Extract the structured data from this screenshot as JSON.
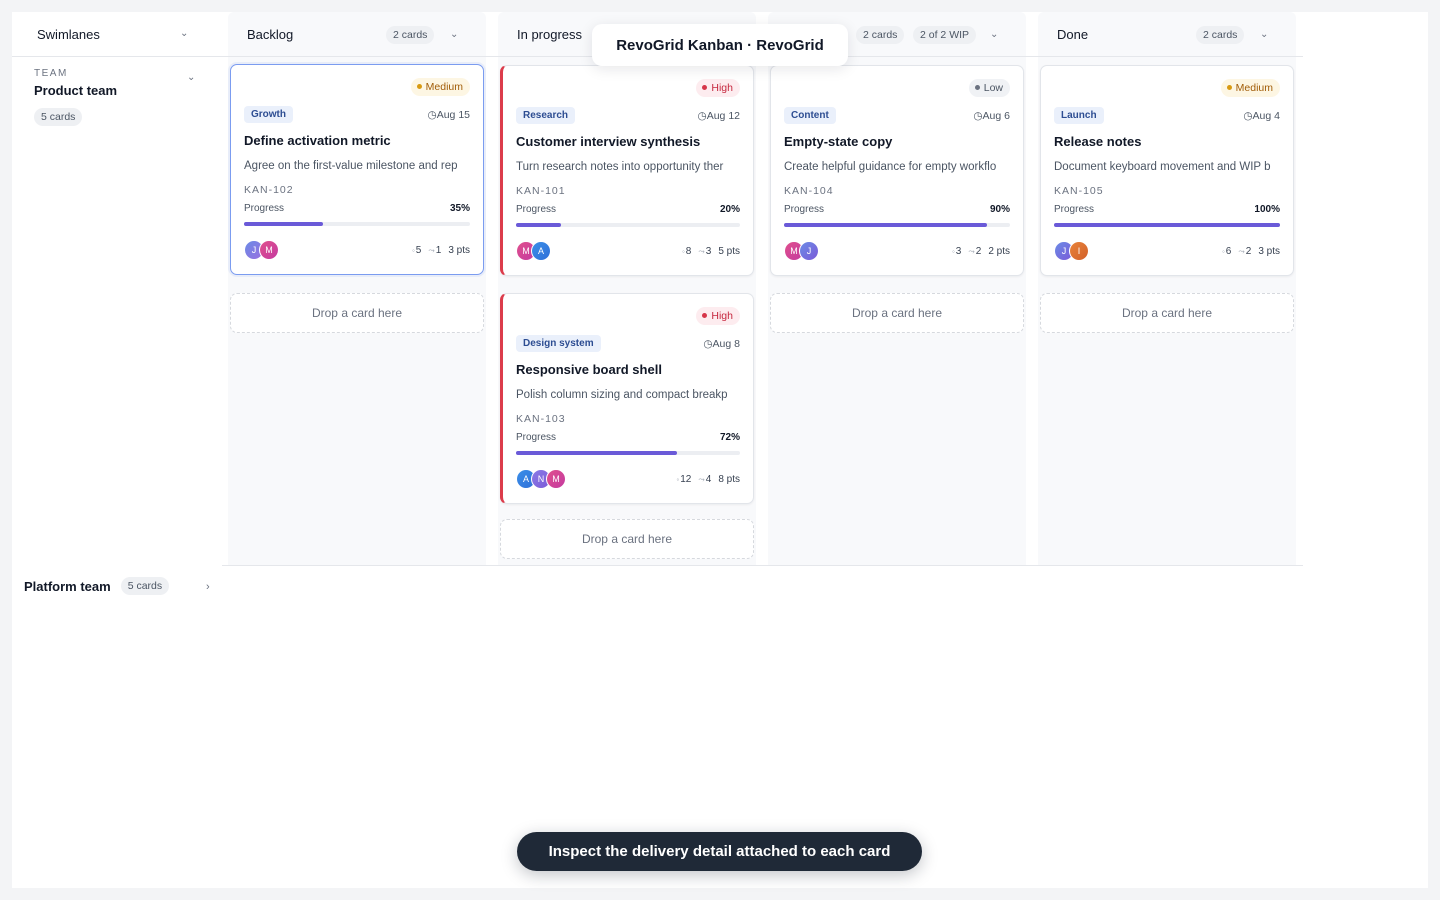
{
  "window_title": "RevoGrid Kanban · RevoGrid",
  "toast": "Inspect the delivery detail attached to each card",
  "swimlanes_header": "Swimlanes",
  "swimlanes": [
    {
      "caption": "TEAM",
      "name": "Product team",
      "count": "5 cards",
      "expanded": true
    },
    {
      "name": "Platform team",
      "count": "5 cards",
      "expanded": false
    }
  ],
  "drop_text": "Drop a card here",
  "colors": {
    "accent": "#6a5ad8",
    "high": "#dc3c4b",
    "medium": "#d89a12",
    "selected_border": "#7b9cf0"
  },
  "icons": {
    "calendar": "calendar-icon",
    "comment": "comment-icon",
    "link": "link-icon",
    "chevron": "chevron-down-icon"
  },
  "columns": [
    {
      "title": "Backlog",
      "count": "2 cards",
      "wip": ""
    },
    {
      "title": "In progress",
      "count": "",
      "wip": ""
    },
    {
      "title": "",
      "count": "2 cards",
      "wip": "2 of 2 WIP"
    },
    {
      "title": "Done",
      "count": "2 cards",
      "wip": ""
    }
  ],
  "cards": [
    {
      "priority": "Medium",
      "tag": "Growth",
      "date": "Aug 15",
      "title": "Define activation metric",
      "description": "Agree on the first-value milestone and rep",
      "key": "KAN-102",
      "progress_label": "Progress",
      "progress": "35%",
      "progress_value": 0.35,
      "avatars": [
        "J",
        "M"
      ],
      "comments": "5",
      "links": "1",
      "points": "3 pts"
    },
    {
      "priority": "High",
      "tag": "Research",
      "date": "Aug 12",
      "title": "Customer interview synthesis",
      "description": "Turn research notes into opportunity ther",
      "key": "KAN-101",
      "progress_label": "Progress",
      "progress": "20%",
      "progress_value": 0.2,
      "avatars": [
        "M",
        "A"
      ],
      "comments": "8",
      "links": "3",
      "points": "5 pts"
    },
    {
      "priority": "High",
      "tag": "Design system",
      "date": "Aug 8",
      "title": "Responsive board shell",
      "description": "Polish column sizing and compact breakp",
      "key": "KAN-103",
      "progress_label": "Progress",
      "progress": "72%",
      "progress_value": 0.72,
      "avatars": [
        "A",
        "N",
        "M"
      ],
      "comments": "12",
      "links": "4",
      "points": "8 pts"
    },
    {
      "priority": "Low",
      "tag": "Content",
      "date": "Aug 6",
      "title": "Empty-state copy",
      "description": "Create helpful guidance for empty workflo",
      "key": "KAN-104",
      "progress_label": "Progress",
      "progress": "90%",
      "progress_value": 0.9,
      "avatars": [
        "M",
        "J"
      ],
      "comments": "3",
      "links": "2",
      "points": "2 pts"
    },
    {
      "priority": "Medium",
      "tag": "Launch",
      "date": "Aug 4",
      "title": "Release notes",
      "description": "Document keyboard movement and WIP b",
      "key": "KAN-105",
      "progress_label": "Progress",
      "progress": "100%",
      "progress_value": 1.0,
      "avatars": [
        "J",
        "I"
      ],
      "comments": "6",
      "links": "2",
      "points": "3 pts"
    }
  ]
}
